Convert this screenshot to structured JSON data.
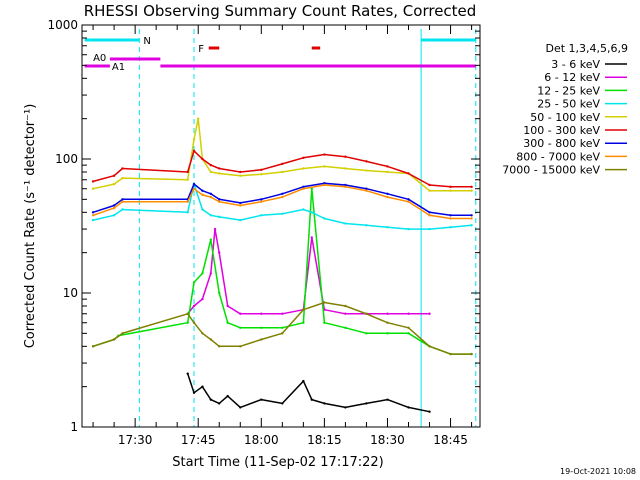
{
  "chart_data": {
    "type": "line",
    "title": "RHESSI Observing Summary Count Rates, Corrected",
    "xlabel": "Start Time (11-Sep-02 17:17:22)",
    "ylabel": "Corrected Count Rate (s⁻¹ detector⁻¹)",
    "y_scale": "log",
    "ylim": [
      1,
      1000
    ],
    "xlim": [
      "17:17:22",
      "18:52:00"
    ],
    "x_ticks": [
      "17:30",
      "17:45",
      "18:00",
      "18:15",
      "18:30",
      "18:45"
    ],
    "y_ticks": [
      "1",
      "10",
      "100",
      "1000"
    ],
    "legend_title": "Det 1,3,4,5,6,9",
    "legend_position": "right",
    "timestamp": "19-Oct-2021 10:08",
    "flags": [
      {
        "label": "N",
        "color": "#00e5ee"
      },
      {
        "label": "A0",
        "color": "#e000e0"
      },
      {
        "label": "A1",
        "color": "#e000e0"
      },
      {
        "label": "F",
        "color": "#e00000"
      }
    ],
    "night_markers": [
      "17:31",
      "17:44",
      "18:38",
      "18:51"
    ],
    "series": [
      {
        "name": "3 - 6 keV",
        "color": "#000000",
        "x": [
          "17:42:30",
          "17:44",
          "17:46",
          "17:48",
          "17:50",
          "17:52",
          "17:55",
          "18:00",
          "18:05",
          "18:10",
          "18:12",
          "18:15",
          "18:20",
          "18:25",
          "18:30",
          "18:35",
          "18:40"
        ],
        "values": [
          2.5,
          1.8,
          2.0,
          1.6,
          1.5,
          1.7,
          1.4,
          1.6,
          1.5,
          2.2,
          1.6,
          1.5,
          1.4,
          1.5,
          1.6,
          1.4,
          1.3
        ]
      },
      {
        "name": "6 - 12 keV",
        "color": "#e000e0",
        "x": [
          "17:42:30",
          "17:44",
          "17:46",
          "17:48",
          "17:49",
          "17:50",
          "17:52",
          "17:55",
          "18:00",
          "18:05",
          "18:10",
          "18:12",
          "18:15",
          "18:20",
          "18:25",
          "18:30",
          "18:35",
          "18:40"
        ],
        "values": [
          7,
          8,
          9,
          14,
          30,
          20,
          8,
          7,
          7,
          7,
          7.5,
          26,
          7.5,
          7,
          7,
          7,
          7,
          7
        ]
      },
      {
        "name": "12 - 25 keV",
        "color": "#00e000",
        "x": [
          "17:20",
          "17:25",
          "17:26",
          "17:42:30",
          "17:44",
          "17:46",
          "17:48",
          "17:50",
          "17:52",
          "17:55",
          "18:00",
          "18:05",
          "18:10",
          "18:12",
          "18:15",
          "18:20",
          "18:25",
          "18:30",
          "18:35",
          "18:40",
          "18:45",
          "18:50"
        ],
        "values": [
          4,
          4.5,
          4.8,
          6,
          12,
          14,
          25,
          10,
          6,
          5.5,
          5.5,
          5.5,
          6,
          60,
          6,
          5.5,
          5,
          5,
          5,
          4,
          3.5,
          3.5
        ]
      },
      {
        "name": "25 - 50 keV",
        "color": "#00e5ee",
        "x": [
          "17:20",
          "17:25",
          "17:27",
          "17:42:30",
          "17:44",
          "17:46",
          "17:48",
          "17:50",
          "17:55",
          "18:00",
          "18:05",
          "18:10",
          "18:12",
          "18:15",
          "18:20",
          "18:25",
          "18:30",
          "18:35",
          "18:40",
          "18:45",
          "18:50"
        ],
        "values": [
          35,
          38,
          42,
          40,
          65,
          42,
          38,
          37,
          35,
          38,
          39,
          42,
          40,
          36,
          33,
          32,
          31,
          30,
          30,
          31,
          32
        ]
      },
      {
        "name": "50 - 100 keV",
        "color": "#d2d000",
        "x": [
          "17:20",
          "17:25",
          "17:27",
          "17:42:30",
          "17:44",
          "17:45",
          "17:46",
          "17:48",
          "17:50",
          "17:55",
          "18:00",
          "18:05",
          "18:10",
          "18:15",
          "18:20",
          "18:25",
          "18:30",
          "18:35",
          "18:40",
          "18:45",
          "18:50"
        ],
        "values": [
          60,
          65,
          72,
          70,
          140,
          200,
          100,
          80,
          78,
          75,
          77,
          80,
          85,
          88,
          85,
          82,
          80,
          78,
          58,
          58,
          58
        ]
      },
      {
        "name": "100 - 300 keV",
        "color": "#e00000",
        "x": [
          "17:20",
          "17:25",
          "17:27",
          "17:42:30",
          "17:44",
          "17:46",
          "17:48",
          "17:50",
          "17:55",
          "18:00",
          "18:05",
          "18:10",
          "18:15",
          "18:20",
          "18:25",
          "18:30",
          "18:35",
          "18:40",
          "18:45",
          "18:50"
        ],
        "values": [
          68,
          75,
          85,
          80,
          115,
          100,
          90,
          85,
          80,
          83,
          92,
          102,
          108,
          104,
          96,
          88,
          78,
          64,
          62,
          62
        ]
      },
      {
        "name": "300 - 800 keV",
        "color": "#0000e0",
        "x": [
          "17:20",
          "17:25",
          "17:27",
          "17:42:30",
          "17:44",
          "17:46",
          "17:48",
          "17:50",
          "17:55",
          "18:00",
          "18:05",
          "18:10",
          "18:15",
          "18:20",
          "18:25",
          "18:30",
          "18:35",
          "18:40",
          "18:45",
          "18:50"
        ],
        "values": [
          40,
          45,
          50,
          50,
          65,
          58,
          55,
          50,
          47,
          50,
          55,
          62,
          66,
          64,
          60,
          55,
          50,
          40,
          38,
          38
        ]
      },
      {
        "name": "800 - 7000 keV",
        "color": "#ff8c00",
        "x": [
          "17:20",
          "17:25",
          "17:27",
          "17:42:30",
          "17:44",
          "17:46",
          "17:48",
          "17:50",
          "17:55",
          "18:00",
          "18:05",
          "18:10",
          "18:15",
          "18:20",
          "18:25",
          "18:30",
          "18:35",
          "18:40",
          "18:45",
          "18:50"
        ],
        "values": [
          38,
          43,
          48,
          48,
          60,
          54,
          52,
          48,
          45,
          48,
          52,
          60,
          64,
          62,
          58,
          52,
          48,
          38,
          36,
          36
        ]
      },
      {
        "name": "7000 - 15000 keV",
        "color": "#808000",
        "x": [
          "17:20",
          "17:25",
          "17:27",
          "17:42:30",
          "17:44",
          "17:46",
          "17:48",
          "17:50",
          "17:55",
          "18:00",
          "18:05",
          "18:10",
          "18:15",
          "18:20",
          "18:25",
          "18:30",
          "18:35",
          "18:40",
          "18:45",
          "18:50"
        ],
        "values": [
          4,
          4.5,
          5,
          7,
          6,
          5,
          4.5,
          4,
          4,
          4.5,
          5,
          7.5,
          8.5,
          8,
          7,
          6,
          5.5,
          4,
          3.5,
          3.5
        ]
      }
    ]
  }
}
